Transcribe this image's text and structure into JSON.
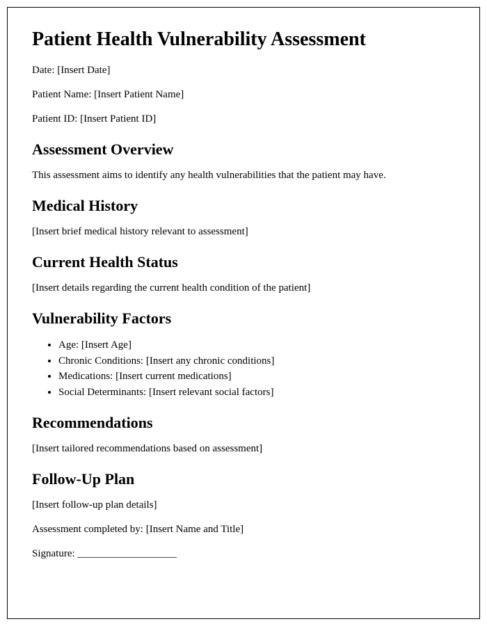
{
  "title": "Patient Health Vulnerability Assessment",
  "fields": {
    "date": "Date: [Insert Date]",
    "patient_name": "Patient Name: [Insert Patient Name]",
    "patient_id": "Patient ID: [Insert Patient ID]"
  },
  "sections": {
    "overview": {
      "heading": "Assessment Overview",
      "body": "This assessment aims to identify any health vulnerabilities that the patient may have."
    },
    "medical_history": {
      "heading": "Medical History",
      "body": "[Insert brief medical history relevant to assessment]"
    },
    "current_health": {
      "heading": "Current Health Status",
      "body": "[Insert details regarding the current health condition of the patient]"
    },
    "vulnerability": {
      "heading": "Vulnerability Factors",
      "items": [
        "Age: [Insert Age]",
        "Chronic Conditions: [Insert any chronic conditions]",
        "Medications: [Insert current medications]",
        "Social Determinants: [Insert relevant social factors]"
      ]
    },
    "recommendations": {
      "heading": "Recommendations",
      "body": "[Insert tailored recommendations based on assessment]"
    },
    "followup": {
      "heading": "Follow-Up Plan",
      "body": "[Insert follow-up plan details]"
    }
  },
  "footer": {
    "completed_by": "Assessment completed by: [Insert Name and Title]",
    "signature": "Signature: ___________________"
  }
}
